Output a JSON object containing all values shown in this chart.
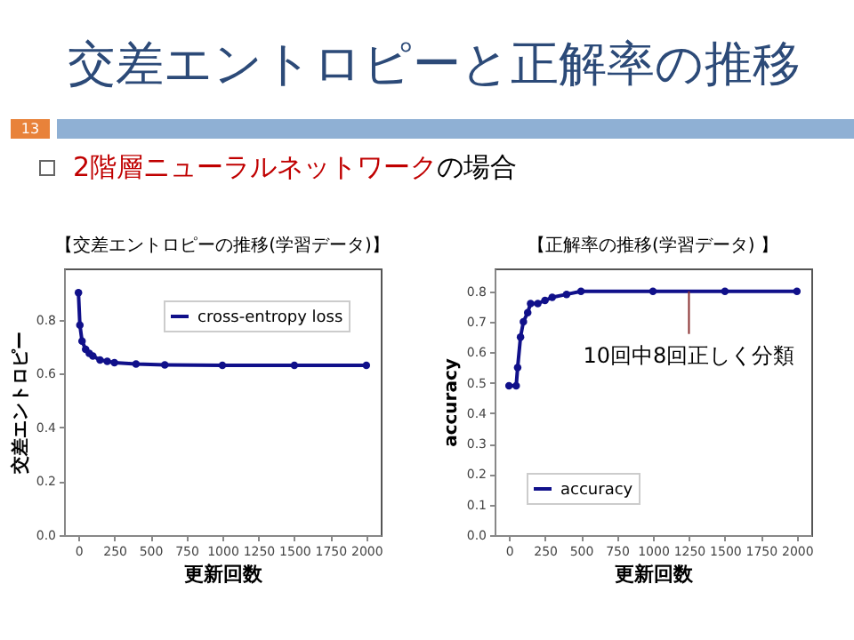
{
  "chart_data": [
    {
      "type": "line",
      "title": "【交差エントロピーの推移(学習データ)】",
      "xlabel": "更新回数",
      "ylabel": "交差エントロピー",
      "annotations": [
        "交差エントロピーと正解率の推移",
        "13",
        "2階層ニューラルネットワーク",
        "の場合"
      ],
      "x": [
        0,
        10,
        25,
        50,
        75,
        100,
        150,
        200,
        250,
        400,
        600,
        1000,
        1500,
        2000
      ],
      "series": [
        {
          "name": "cross-entropy loss",
          "color": "#10108a",
          "values": [
            0.9,
            0.78,
            0.72,
            0.69,
            0.675,
            0.665,
            0.65,
            0.645,
            0.64,
            0.635,
            0.632,
            0.63,
            0.63,
            0.63
          ]
        }
      ],
      "xlim": [
        -100,
        2100
      ],
      "xticks": [
        0,
        250,
        500,
        750,
        1000,
        1250,
        1500,
        1750,
        2000
      ],
      "ylim": [
        0,
        0.99
      ],
      "yticks": [
        {
          "value": 0,
          "label": "0.0"
        },
        {
          "value": 0.2,
          "label": "0.2"
        },
        {
          "value": 0.4,
          "label": "0.4"
        },
        {
          "value": 0.6,
          "label": "0.6"
        },
        {
          "value": 0.8,
          "label": "0.8"
        }
      ],
      "legend": "top right",
      "marker": "circle",
      "grid": false
    },
    {
      "type": "line",
      "title": "【正解率の推移(学習データ) 】",
      "xlabel": "更新回数",
      "ylabel": "accuracy",
      "annotations": [
        {
          "text": "10回中8回正しく分類",
          "x": 1250,
          "y": 0.8
        }
      ],
      "x": [
        0,
        50,
        60,
        80,
        100,
        130,
        150,
        200,
        250,
        300,
        400,
        500,
        1000,
        1500,
        2000
      ],
      "series": [
        {
          "name": "accuracy",
          "color": "#10108a",
          "values": [
            0.49,
            0.49,
            0.55,
            0.65,
            0.7,
            0.73,
            0.76,
            0.76,
            0.77,
            0.78,
            0.79,
            0.8,
            0.8,
            0.8,
            0.8
          ]
        }
      ],
      "xlim": [
        -100,
        2100
      ],
      "xticks": [
        0,
        250,
        500,
        750,
        1000,
        1250,
        1500,
        1750,
        2000
      ],
      "ylim": [
        0,
        0.875
      ],
      "yticks": [
        {
          "value": 0,
          "label": "0.0"
        },
        {
          "value": 0.1,
          "label": "0.1"
        },
        {
          "value": 0.2,
          "label": "0.2"
        },
        {
          "value": 0.3,
          "label": "0.3"
        },
        {
          "value": 0.4,
          "label": "0.4"
        },
        {
          "value": 0.5,
          "label": "0.5"
        },
        {
          "value": 0.6,
          "label": "0.6"
        },
        {
          "value": 0.7,
          "label": "0.7"
        },
        {
          "value": 0.8,
          "label": "0.8"
        }
      ],
      "legend": "bottom left",
      "marker": "circle",
      "grid": false
    }
  ]
}
